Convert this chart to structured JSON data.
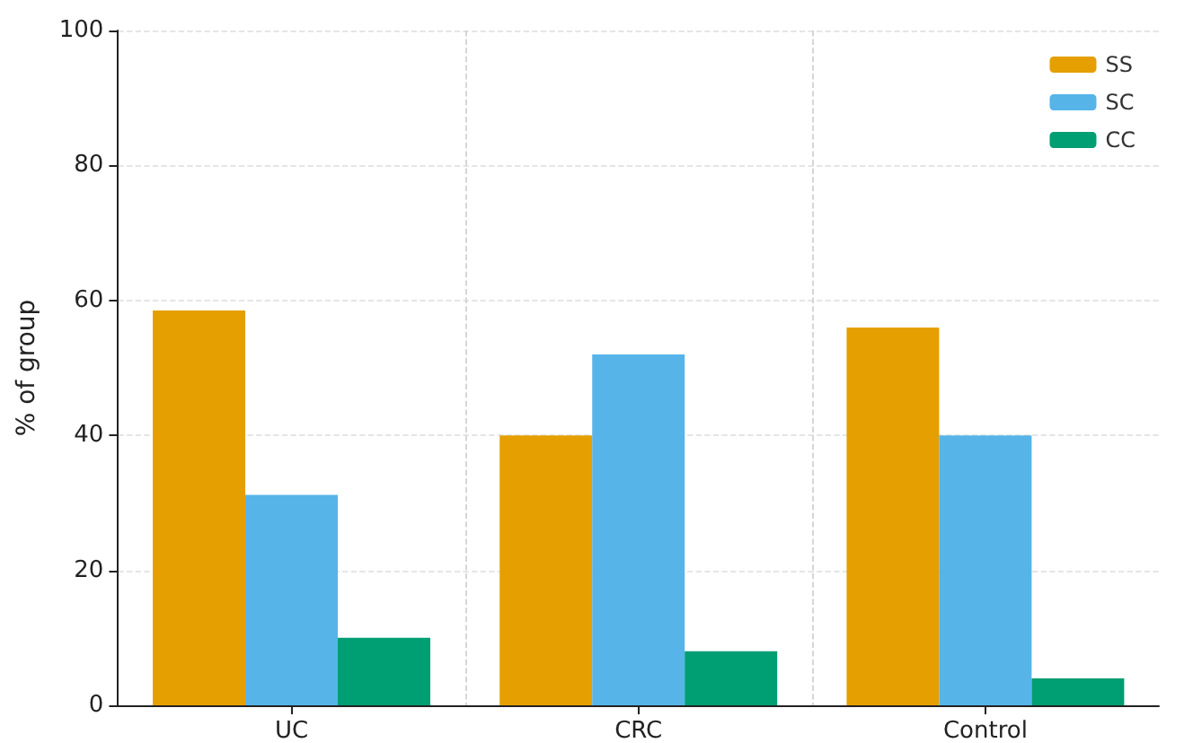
{
  "chart_data": {
    "type": "bar",
    "ylabel": "% of group",
    "categories": [
      "UC",
      "CRC",
      "Control"
    ],
    "series": [
      {
        "name": "SS",
        "color": "#e69f00",
        "values": [
          58.5,
          40,
          56
        ]
      },
      {
        "name": "SC",
        "color": "#56b4e9",
        "values": [
          31.2,
          52,
          40
        ]
      },
      {
        "name": "CC",
        "color": "#009e73",
        "values": [
          10,
          8,
          4
        ]
      }
    ],
    "ylim": [
      0,
      100
    ],
    "yticks": [
      0,
      20,
      40,
      60,
      80,
      100
    ],
    "grid": true,
    "legend": "top right"
  }
}
